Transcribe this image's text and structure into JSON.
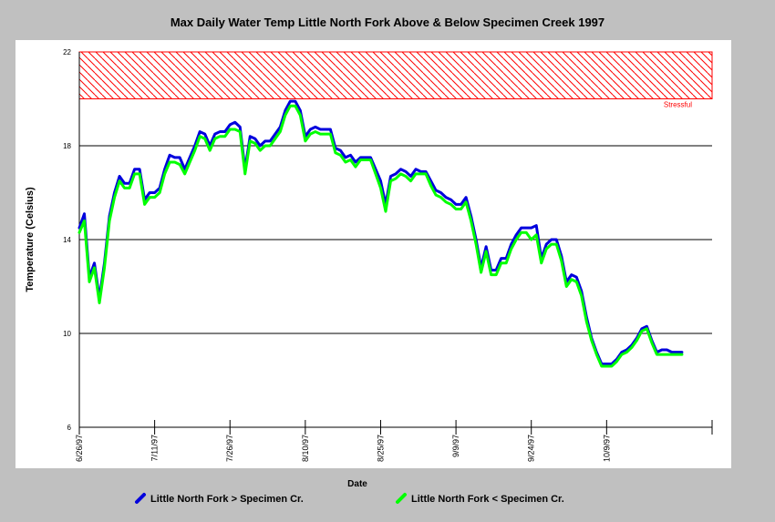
{
  "chart_data": {
    "type": "line",
    "title": "Max Daily Water Temp Little North Fork Above & Below Specimen Creek 1997",
    "xlabel": "Date",
    "ylabel": "Temperature (Celsius)",
    "ylim": [
      6,
      22
    ],
    "yticks": [
      6,
      10,
      14,
      18,
      22
    ],
    "xlim": [
      "1997-06-26",
      "1997-10-30"
    ],
    "xticks": [
      "6/26/97",
      "7/11/97",
      "7/26/97",
      "8/10/97",
      "8/25/97",
      "9/9/97",
      "9/24/97",
      "10/9/97"
    ],
    "grid": "horizontal",
    "legend_position": "bottom",
    "threshold_band": {
      "label": "Stressful",
      "from": 20,
      "to": 22,
      "color": "#ff0000"
    },
    "series": [
      {
        "name": "Little North Fork > Specimen Cr.",
        "color": "#0000dd",
        "x": [
          "1997-06-26",
          "1997-06-27",
          "1997-06-28",
          "1997-06-29",
          "1997-06-30",
          "1997-07-01",
          "1997-07-02",
          "1997-07-03",
          "1997-07-04",
          "1997-07-05",
          "1997-07-06",
          "1997-07-07",
          "1997-07-08",
          "1997-07-09",
          "1997-07-10",
          "1997-07-11",
          "1997-07-12",
          "1997-07-13",
          "1997-07-14",
          "1997-07-15",
          "1997-07-16",
          "1997-07-17",
          "1997-07-18",
          "1997-07-19",
          "1997-07-20",
          "1997-07-21",
          "1997-07-22",
          "1997-07-23",
          "1997-07-24",
          "1997-07-25",
          "1997-07-26",
          "1997-07-27",
          "1997-07-28",
          "1997-07-29",
          "1997-07-30",
          "1997-07-31",
          "1997-08-01",
          "1997-08-02",
          "1997-08-03",
          "1997-08-04",
          "1997-08-05",
          "1997-08-06",
          "1997-08-07",
          "1997-08-08",
          "1997-08-09",
          "1997-08-10",
          "1997-08-11",
          "1997-08-12",
          "1997-08-13",
          "1997-08-14",
          "1997-08-15",
          "1997-08-16",
          "1997-08-17",
          "1997-08-18",
          "1997-08-19",
          "1997-08-20",
          "1997-08-21",
          "1997-08-22",
          "1997-08-23",
          "1997-08-24",
          "1997-08-25",
          "1997-08-26",
          "1997-08-27",
          "1997-08-28",
          "1997-08-29",
          "1997-08-30",
          "1997-08-31",
          "1997-09-01",
          "1997-09-02",
          "1997-09-03",
          "1997-09-04",
          "1997-09-05",
          "1997-09-06",
          "1997-09-07",
          "1997-09-08",
          "1997-09-09",
          "1997-09-10",
          "1997-09-11",
          "1997-09-12",
          "1997-09-13",
          "1997-09-14",
          "1997-09-15",
          "1997-09-16",
          "1997-09-17",
          "1997-09-18",
          "1997-09-19",
          "1997-09-20",
          "1997-09-21",
          "1997-09-22",
          "1997-09-23",
          "1997-09-24",
          "1997-09-25",
          "1997-09-26",
          "1997-09-27",
          "1997-09-28",
          "1997-09-29",
          "1997-09-30",
          "1997-10-01",
          "1997-10-02",
          "1997-10-03",
          "1997-10-04",
          "1997-10-05",
          "1997-10-06",
          "1997-10-07",
          "1997-10-08",
          "1997-10-09",
          "1997-10-10",
          "1997-10-11",
          "1997-10-12",
          "1997-10-13",
          "1997-10-14",
          "1997-10-15",
          "1997-10-16",
          "1997-10-17",
          "1997-10-18",
          "1997-10-19",
          "1997-10-20",
          "1997-10-21",
          "1997-10-22",
          "1997-10-23",
          "1997-10-24"
        ],
        "values": [
          14.5,
          15.1,
          12.4,
          13.0,
          11.5,
          13.0,
          15.0,
          16.0,
          16.7,
          16.4,
          16.4,
          17.0,
          17.0,
          15.7,
          16.0,
          16.0,
          16.2,
          17.0,
          17.6,
          17.5,
          17.5,
          17.0,
          17.5,
          18.0,
          18.6,
          18.5,
          18.0,
          18.5,
          18.6,
          18.6,
          18.9,
          19.0,
          18.8,
          17.0,
          18.4,
          18.3,
          18.0,
          18.2,
          18.2,
          18.5,
          18.8,
          19.5,
          19.9,
          19.9,
          19.5,
          18.4,
          18.7,
          18.8,
          18.7,
          18.7,
          18.7,
          17.9,
          17.8,
          17.5,
          17.6,
          17.3,
          17.5,
          17.5,
          17.5,
          17.0,
          16.5,
          15.5,
          16.7,
          16.8,
          17.0,
          16.9,
          16.7,
          17.0,
          16.9,
          16.9,
          16.5,
          16.1,
          16.0,
          15.8,
          15.7,
          15.5,
          15.5,
          15.8,
          15.0,
          14.0,
          12.8,
          13.7,
          12.7,
          12.7,
          13.2,
          13.2,
          13.8,
          14.2,
          14.5,
          14.5,
          14.5,
          14.6,
          13.2,
          13.8,
          14.0,
          14.0,
          13.3,
          12.2,
          12.5,
          12.4,
          11.8,
          10.7,
          9.8,
          9.2,
          8.7,
          8.7,
          8.7,
          8.9,
          9.2,
          9.3,
          9.5,
          9.8,
          10.2,
          10.3,
          9.7,
          9.2,
          9.3,
          9.3,
          9.2,
          9.2,
          9.2
        ]
      },
      {
        "name": "Little North Fork < Specimen Cr.",
        "color": "#00ff00",
        "x": [
          "1997-06-26",
          "1997-06-27",
          "1997-06-28",
          "1997-06-29",
          "1997-06-30",
          "1997-07-01",
          "1997-07-02",
          "1997-07-03",
          "1997-07-04",
          "1997-07-05",
          "1997-07-06",
          "1997-07-07",
          "1997-07-08",
          "1997-07-09",
          "1997-07-10",
          "1997-07-11",
          "1997-07-12",
          "1997-07-13",
          "1997-07-14",
          "1997-07-15",
          "1997-07-16",
          "1997-07-17",
          "1997-07-18",
          "1997-07-19",
          "1997-07-20",
          "1997-07-21",
          "1997-07-22",
          "1997-07-23",
          "1997-07-24",
          "1997-07-25",
          "1997-07-26",
          "1997-07-27",
          "1997-07-28",
          "1997-07-29",
          "1997-07-30",
          "1997-07-31",
          "1997-08-01",
          "1997-08-02",
          "1997-08-03",
          "1997-08-04",
          "1997-08-05",
          "1997-08-06",
          "1997-08-07",
          "1997-08-08",
          "1997-08-09",
          "1997-08-10",
          "1997-08-11",
          "1997-08-12",
          "1997-08-13",
          "1997-08-14",
          "1997-08-15",
          "1997-08-16",
          "1997-08-17",
          "1997-08-18",
          "1997-08-19",
          "1997-08-20",
          "1997-08-21",
          "1997-08-22",
          "1997-08-23",
          "1997-08-24",
          "1997-08-25",
          "1997-08-26",
          "1997-08-27",
          "1997-08-28",
          "1997-08-29",
          "1997-08-30",
          "1997-08-31",
          "1997-09-01",
          "1997-09-02",
          "1997-09-03",
          "1997-09-04",
          "1997-09-05",
          "1997-09-06",
          "1997-09-07",
          "1997-09-08",
          "1997-09-09",
          "1997-09-10",
          "1997-09-11",
          "1997-09-12",
          "1997-09-13",
          "1997-09-14",
          "1997-09-15",
          "1997-09-16",
          "1997-09-17",
          "1997-09-18",
          "1997-09-19",
          "1997-09-20",
          "1997-09-21",
          "1997-09-22",
          "1997-09-23",
          "1997-09-24",
          "1997-09-25",
          "1997-09-26",
          "1997-09-27",
          "1997-09-28",
          "1997-09-29",
          "1997-09-30",
          "1997-10-01",
          "1997-10-02",
          "1997-10-03",
          "1997-10-04",
          "1997-10-05",
          "1997-10-06",
          "1997-10-07",
          "1997-10-08",
          "1997-10-09",
          "1997-10-10",
          "1997-10-11",
          "1997-10-12",
          "1997-10-13",
          "1997-10-14",
          "1997-10-15",
          "1997-10-16",
          "1997-10-17",
          "1997-10-18",
          "1997-10-19",
          "1997-10-20",
          "1997-10-21",
          "1997-10-22",
          "1997-10-23",
          "1997-10-24"
        ],
        "values": [
          14.3,
          14.8,
          12.2,
          12.8,
          11.3,
          12.8,
          14.8,
          15.8,
          16.5,
          16.2,
          16.2,
          16.8,
          16.8,
          15.5,
          15.8,
          15.8,
          16.0,
          16.8,
          17.3,
          17.3,
          17.2,
          16.8,
          17.3,
          17.8,
          18.4,
          18.3,
          17.8,
          18.3,
          18.4,
          18.4,
          18.7,
          18.7,
          18.6,
          16.8,
          18.2,
          18.1,
          17.8,
          18.0,
          18.0,
          18.3,
          18.6,
          19.3,
          19.7,
          19.7,
          19.3,
          18.2,
          18.5,
          18.6,
          18.5,
          18.5,
          18.5,
          17.7,
          17.6,
          17.3,
          17.4,
          17.1,
          17.4,
          17.4,
          17.4,
          16.8,
          16.2,
          15.2,
          16.5,
          16.6,
          16.8,
          16.7,
          16.5,
          16.8,
          16.8,
          16.8,
          16.3,
          15.9,
          15.8,
          15.6,
          15.5,
          15.3,
          15.3,
          15.6,
          14.8,
          13.8,
          12.6,
          13.5,
          12.5,
          12.5,
          13.0,
          13.0,
          13.6,
          14.0,
          14.3,
          14.3,
          14.0,
          14.2,
          13.0,
          13.6,
          13.8,
          13.8,
          13.1,
          12.0,
          12.3,
          12.2,
          11.6,
          10.5,
          9.7,
          9.1,
          8.6,
          8.6,
          8.6,
          8.8,
          9.1,
          9.2,
          9.4,
          9.7,
          10.1,
          10.2,
          9.6,
          9.1,
          9.1,
          9.1,
          9.1,
          9.1,
          9.1
        ]
      }
    ]
  }
}
